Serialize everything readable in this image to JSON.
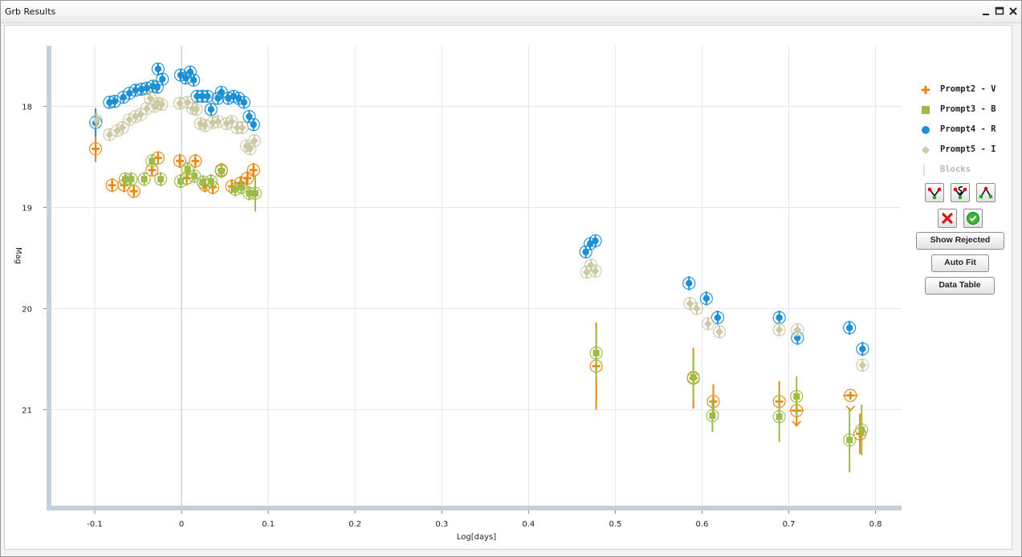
{
  "window": {
    "title": "Grb Results"
  },
  "legend": [
    {
      "label": "Prompt2 - V",
      "symbol": "cross",
      "color": "#e8860c"
    },
    {
      "label": "Prompt3 - B",
      "symbol": "square",
      "color": "#9dbb4a"
    },
    {
      "label": "Prompt4 - R",
      "symbol": "circle",
      "color": "#1d8fd3"
    },
    {
      "label": "Prompt5 - I",
      "symbol": "diamond",
      "color": "#cdc9a5"
    },
    {
      "label": "Blocks",
      "symbol": "line",
      "color": "#c9dbe6"
    }
  ],
  "controls": {
    "icon_buttons": [
      "fit-v-icon",
      "fit-s-icon",
      "fit-a-icon"
    ],
    "reject_icon": "red-x-icon",
    "accept_icon": "green-check-icon",
    "show_rejected": "Show Rejected",
    "auto_fit": "Auto Fit",
    "data_table": "Data Table"
  },
  "chart_data": {
    "type": "scatter",
    "xlabel": "Log[days]",
    "ylabel": "Mag",
    "xlim": [
      -0.15,
      0.83
    ],
    "ylim": [
      21.95,
      17.4
    ],
    "ylim_note": "reversed",
    "xticks": [
      -0.1,
      0,
      0.1,
      0.2,
      0.3,
      0.4,
      0.5,
      0.6,
      0.7,
      0.8
    ],
    "xtick_labels": [
      "-0.1",
      "0",
      "0.1",
      "0.2",
      "0.3",
      "0.4",
      "0.5",
      "0.6",
      "0.7",
      "0.8"
    ],
    "yticks": [
      18,
      19,
      20,
      21
    ],
    "ytick_labels": [
      "18",
      "19",
      "20",
      "21"
    ],
    "grid": true,
    "block_line_x": 0.0,
    "series": [
      {
        "name": "Prompt2 - V",
        "marker": "cross",
        "color": "#e8860c",
        "points": [
          [
            -0.099,
            18.42,
            0.13
          ],
          [
            -0.08,
            18.78,
            0.07
          ],
          [
            -0.066,
            18.78,
            0.07
          ],
          [
            -0.055,
            18.84,
            0.06
          ],
          [
            -0.034,
            18.63,
            0.06
          ],
          [
            -0.027,
            18.51,
            0.06
          ],
          [
            -0.002,
            18.54,
            0.07
          ],
          [
            0.006,
            18.71,
            0.07
          ],
          [
            0.016,
            18.54,
            0.07
          ],
          [
            0.027,
            18.78,
            0.07
          ],
          [
            0.036,
            18.8,
            0.07
          ],
          [
            0.046,
            18.63,
            0.07
          ],
          [
            0.058,
            18.79,
            0.07
          ],
          [
            0.068,
            18.76,
            0.07
          ],
          [
            0.076,
            18.71,
            0.07
          ],
          [
            0.083,
            18.63,
            0.07
          ],
          [
            0.478,
            20.57,
            0.43
          ],
          [
            0.59,
            20.69,
            0.3
          ],
          [
            0.613,
            20.92,
            0.17
          ],
          [
            0.689,
            20.92,
            0.2
          ],
          [
            0.709,
            21.01,
            0.14
          ],
          [
            0.771,
            20.86,
            0.0
          ],
          [
            0.782,
            21.24,
            0.2
          ]
        ],
        "upper_limits": [
          [
            0.709,
            21.01
          ],
          [
            0.771,
            20.86
          ]
        ]
      },
      {
        "name": "Prompt3 - B",
        "marker": "square",
        "color": "#9dbb4a",
        "points": [
          [
            -0.065,
            18.72,
            0.07
          ],
          [
            -0.058,
            18.72,
            0.07
          ],
          [
            -0.043,
            18.72,
            0.07
          ],
          [
            -0.034,
            18.54,
            0.07
          ],
          [
            -0.024,
            18.72,
            0.07
          ],
          [
            -0.001,
            18.74,
            0.07
          ],
          [
            0.007,
            18.62,
            0.07
          ],
          [
            0.015,
            18.69,
            0.07
          ],
          [
            0.025,
            18.75,
            0.07
          ],
          [
            0.034,
            18.74,
            0.07
          ],
          [
            0.046,
            18.64,
            0.07
          ],
          [
            0.062,
            18.82,
            0.07
          ],
          [
            0.069,
            18.8,
            0.07
          ],
          [
            0.078,
            18.86,
            0.07
          ],
          [
            0.085,
            18.86,
            0.18
          ],
          [
            0.478,
            20.44,
            0.25
          ],
          [
            0.59,
            20.68,
            0.23
          ],
          [
            0.612,
            21.06,
            0.16
          ],
          [
            0.689,
            21.07,
            0.25
          ],
          [
            0.709,
            20.87,
            0.2
          ],
          [
            0.77,
            21.3,
            0.32
          ],
          [
            0.784,
            21.2,
            0.25
          ]
        ]
      },
      {
        "name": "Prompt4 - R",
        "marker": "circle",
        "color": "#1d8fd3",
        "points": [
          [
            -0.099,
            18.16,
            0.14
          ],
          [
            -0.083,
            17.96,
            0.06
          ],
          [
            -0.077,
            17.95,
            0.06
          ],
          [
            -0.067,
            17.91,
            0.06
          ],
          [
            -0.06,
            17.87,
            0.06
          ],
          [
            -0.053,
            17.84,
            0.06
          ],
          [
            -0.046,
            17.83,
            0.06
          ],
          [
            -0.04,
            17.82,
            0.06
          ],
          [
            -0.033,
            17.8,
            0.06
          ],
          [
            -0.028,
            17.81,
            0.06
          ],
          [
            -0.027,
            17.63,
            0.06
          ],
          [
            -0.022,
            17.73,
            0.06
          ],
          [
            -0.001,
            17.69,
            0.06
          ],
          [
            0.005,
            17.72,
            0.06
          ],
          [
            0.01,
            17.66,
            0.06
          ],
          [
            0.014,
            17.74,
            0.06
          ],
          [
            0.018,
            17.9,
            0.06
          ],
          [
            0.024,
            17.9,
            0.06
          ],
          [
            0.03,
            17.9,
            0.06
          ],
          [
            0.034,
            18.03,
            0.06
          ],
          [
            0.042,
            17.92,
            0.06
          ],
          [
            0.046,
            17.86,
            0.06
          ],
          [
            0.054,
            17.92,
            0.06
          ],
          [
            0.06,
            17.9,
            0.06
          ],
          [
            0.066,
            17.92,
            0.06
          ],
          [
            0.072,
            17.96,
            0.06
          ],
          [
            0.078,
            18.1,
            0.06
          ],
          [
            0.083,
            18.18,
            0.06
          ],
          [
            0.466,
            19.44,
            0.06
          ],
          [
            0.471,
            19.36,
            0.06
          ],
          [
            0.477,
            19.33,
            0.06
          ],
          [
            0.585,
            19.75,
            0.07
          ],
          [
            0.605,
            19.9,
            0.07
          ],
          [
            0.618,
            20.09,
            0.07
          ],
          [
            0.689,
            20.09,
            0.07
          ],
          [
            0.71,
            20.29,
            0.07
          ],
          [
            0.77,
            20.19,
            0.07
          ],
          [
            0.785,
            20.4,
            0.07
          ]
        ]
      },
      {
        "name": "Prompt5 - I",
        "marker": "diamond",
        "color": "#cdc9a5",
        "points": [
          [
            -0.098,
            18.14,
            0.08
          ],
          [
            -0.083,
            18.28,
            0.06
          ],
          [
            -0.074,
            18.24,
            0.06
          ],
          [
            -0.068,
            18.21,
            0.06
          ],
          [
            -0.06,
            18.13,
            0.06
          ],
          [
            -0.053,
            18.1,
            0.06
          ],
          [
            -0.047,
            18.08,
            0.06
          ],
          [
            -0.04,
            18.02,
            0.06
          ],
          [
            -0.036,
            17.92,
            0.06
          ],
          [
            -0.031,
            18.0,
            0.06
          ],
          [
            -0.027,
            17.97,
            0.06
          ],
          [
            -0.023,
            17.98,
            0.06
          ],
          [
            -0.002,
            17.97,
            0.06
          ],
          [
            0.007,
            17.96,
            0.06
          ],
          [
            0.013,
            18.02,
            0.06
          ],
          [
            0.017,
            18.03,
            0.06
          ],
          [
            0.022,
            18.17,
            0.06
          ],
          [
            0.027,
            18.19,
            0.06
          ],
          [
            0.036,
            18.16,
            0.06
          ],
          [
            0.042,
            18.15,
            0.06
          ],
          [
            0.052,
            18.17,
            0.06
          ],
          [
            0.058,
            18.15,
            0.06
          ],
          [
            0.064,
            18.21,
            0.06
          ],
          [
            0.07,
            18.21,
            0.06
          ],
          [
            0.075,
            18.39,
            0.06
          ],
          [
            0.079,
            18.42,
            0.06
          ],
          [
            0.084,
            18.34,
            0.06
          ],
          [
            0.467,
            19.64,
            0.06
          ],
          [
            0.472,
            19.57,
            0.06
          ],
          [
            0.477,
            19.63,
            0.06
          ],
          [
            0.586,
            19.95,
            0.06
          ],
          [
            0.594,
            20.0,
            0.06
          ],
          [
            0.607,
            20.15,
            0.06
          ],
          [
            0.62,
            20.23,
            0.06
          ],
          [
            0.689,
            20.21,
            0.06
          ],
          [
            0.71,
            20.21,
            0.06
          ],
          [
            0.785,
            20.56,
            0.06
          ]
        ]
      }
    ]
  }
}
